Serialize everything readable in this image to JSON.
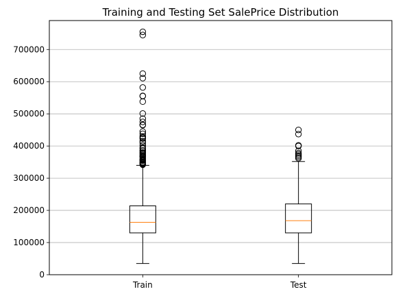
{
  "chart_data": {
    "type": "box",
    "title": "Training and Testing Set SalePrice Distribution",
    "xlabel": "",
    "ylabel": "",
    "ylim": [
      0,
      790000
    ],
    "yticks": [
      0,
      100000,
      200000,
      300000,
      400000,
      500000,
      600000,
      700000
    ],
    "ytick_labels": [
      "0",
      "100000",
      "200000",
      "300000",
      "400000",
      "500000",
      "600000",
      "700000"
    ],
    "grid": "y",
    "categories": [
      "Train",
      "Test"
    ],
    "series": [
      {
        "min": 35000,
        "q1": 130000,
        "median": 163000,
        "q3": 214000,
        "max": 340000,
        "outliers": [
          755000,
          745000,
          625000,
          611000,
          582000,
          556000,
          555000,
          538000,
          501000,
          485000,
          475000,
          466000,
          465000,
          445000,
          438000,
          430000,
          426000,
          423000,
          415000,
          410000,
          402000,
          395000,
          392000,
          386000,
          385000,
          380000,
          378000,
          375000,
          372000,
          369000,
          367000,
          365000,
          360000,
          358000,
          356000,
          354000,
          350000,
          348000,
          346000,
          344000,
          342000
        ]
      },
      {
        "min": 35000,
        "q1": 130000,
        "median": 168000,
        "q3": 220000,
        "max": 352000,
        "outliers": [
          450000,
          437000,
          402000,
          400000,
          385000,
          378000,
          374000,
          370000,
          366000,
          362000
        ]
      }
    ],
    "colors": {
      "box": "#000000",
      "median": "#ff7f0e",
      "grid": "#b0b0b0"
    }
  }
}
